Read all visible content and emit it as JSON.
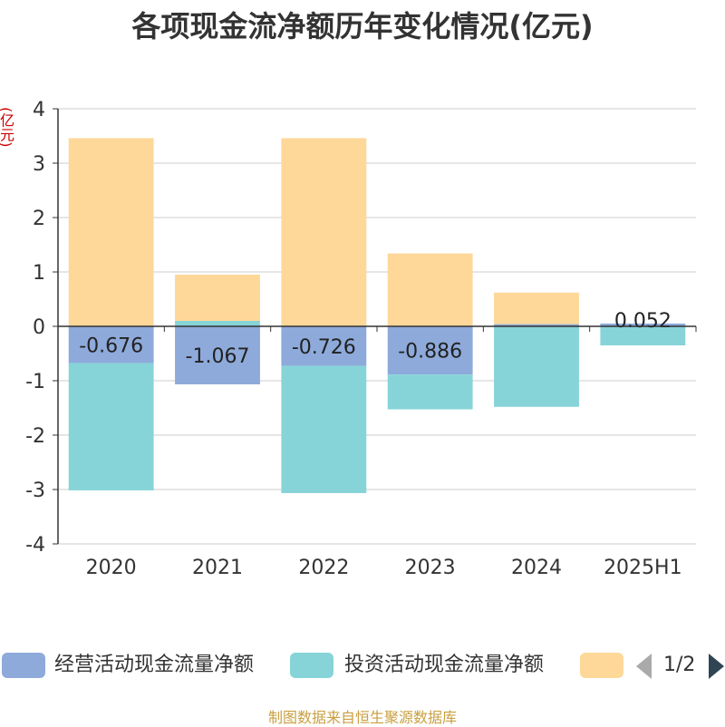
{
  "title": "各项现金流净额历年变化情况(亿元)",
  "unit_label": "(亿元)",
  "footer": "制图数据来自恒生聚源数据库",
  "legend": {
    "items": [
      {
        "label": "经营活动现金流量净额",
        "color": "#8eaadb"
      },
      {
        "label": "投资活动现金流量净额",
        "color": "#86d4d8"
      },
      {
        "label": "",
        "color": "#fed899"
      }
    ],
    "page": "1/2"
  },
  "chart_data": {
    "type": "bar",
    "stacked": true,
    "categories": [
      "2020",
      "2021",
      "2022",
      "2023",
      "2024",
      "2025H1"
    ],
    "ylim": [
      -4,
      4
    ],
    "yticks": [
      "-4",
      "-3",
      "-2",
      "-1",
      "0",
      "1",
      "2",
      "3",
      "4"
    ],
    "grid": true,
    "series": [
      {
        "name": "经营活动现金流量净额",
        "color": "#8eaadb",
        "values": [
          -0.676,
          -1.067,
          -0.726,
          -0.886,
          0.04,
          0.052
        ],
        "labels": [
          "-0.676",
          "-1.067",
          "-0.726",
          "-0.886",
          "",
          "0.052"
        ]
      },
      {
        "name": "投资活动现金流量净额",
        "color": "#86d4d8",
        "values": [
          -2.34,
          0.1,
          -2.34,
          -0.64,
          -1.48,
          -0.35
        ]
      },
      {
        "name": "",
        "color": "#fed899",
        "values": [
          3.46,
          0.85,
          3.46,
          1.34,
          0.58,
          0.0
        ]
      }
    ]
  }
}
